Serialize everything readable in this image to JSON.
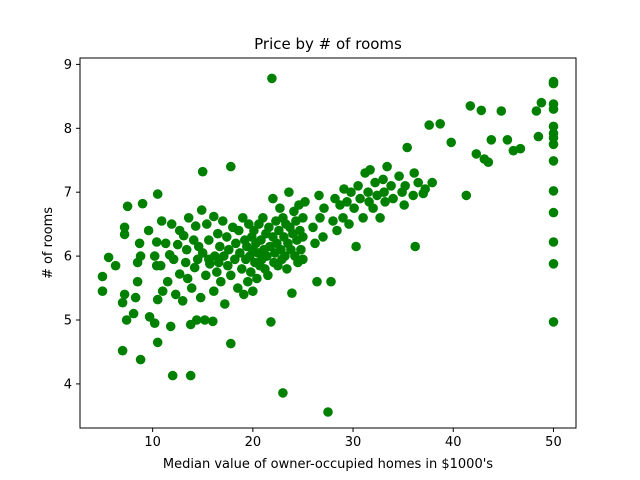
{
  "chart_data": {
    "type": "scatter",
    "title": "Price by # of rooms",
    "xlabel": "Median value of owner-occupied homes in $1000's",
    "ylabel": "# of rooms",
    "xlim": [
      2.75,
      52.25
    ],
    "ylim": [
      3.31,
      9.1
    ],
    "xticks": [
      10,
      20,
      30,
      40,
      50
    ],
    "yticks": [
      4,
      5,
      6,
      7,
      8,
      9
    ],
    "grid": false,
    "legend": "none",
    "marker_color": "#008000",
    "series": [
      {
        "points": [
          [
            5.0,
            5.45
          ],
          [
            5.0,
            5.68
          ],
          [
            5.6,
            5.98
          ],
          [
            6.3,
            5.85
          ],
          [
            7.0,
            4.52
          ],
          [
            7.0,
            5.27
          ],
          [
            7.2,
            5.4
          ],
          [
            7.2,
            6.34
          ],
          [
            7.2,
            6.45
          ],
          [
            7.4,
            5.0
          ],
          [
            7.5,
            6.78
          ],
          [
            8.1,
            5.1
          ],
          [
            8.3,
            5.35
          ],
          [
            8.5,
            5.6
          ],
          [
            8.5,
            5.9
          ],
          [
            8.7,
            6.2
          ],
          [
            8.8,
            4.38
          ],
          [
            8.8,
            6.0
          ],
          [
            9.0,
            6.82
          ],
          [
            9.6,
            6.4
          ],
          [
            9.7,
            5.05
          ],
          [
            10.2,
            6.0
          ],
          [
            10.2,
            4.95
          ],
          [
            10.4,
            5.85
          ],
          [
            10.4,
            6.22
          ],
          [
            10.5,
            4.65
          ],
          [
            10.5,
            5.32
          ],
          [
            10.5,
            6.97
          ],
          [
            10.8,
            5.85
          ],
          [
            10.9,
            6.55
          ],
          [
            11.0,
            5.45
          ],
          [
            11.3,
            6.2
          ],
          [
            11.5,
            5.6
          ],
          [
            11.7,
            6.02
          ],
          [
            11.8,
            4.9
          ],
          [
            11.9,
            6.5
          ],
          [
            12.0,
            4.13
          ],
          [
            12.1,
            5.95
          ],
          [
            12.3,
            5.4
          ],
          [
            12.5,
            6.18
          ],
          [
            12.7,
            6.4
          ],
          [
            12.7,
            5.72
          ],
          [
            13.0,
            5.3
          ],
          [
            13.1,
            6.32
          ],
          [
            13.3,
            5.9
          ],
          [
            13.4,
            6.1
          ],
          [
            13.5,
            5.65
          ],
          [
            13.6,
            6.6
          ],
          [
            13.8,
            4.13
          ],
          [
            13.8,
            4.93
          ],
          [
            13.9,
            5.5
          ],
          [
            14.1,
            6.25
          ],
          [
            14.2,
            5.82
          ],
          [
            14.3,
            6.47
          ],
          [
            14.4,
            5.0
          ],
          [
            14.5,
            5.95
          ],
          [
            14.6,
            6.15
          ],
          [
            14.8,
            5.35
          ],
          [
            14.9,
            6.72
          ],
          [
            15.0,
            7.32
          ],
          [
            15.0,
            6.05
          ],
          [
            15.2,
            5.0
          ],
          [
            15.3,
            5.7
          ],
          [
            15.4,
            6.5
          ],
          [
            15.6,
            5.95
          ],
          [
            15.6,
            6.25
          ],
          [
            15.7,
            5.88
          ],
          [
            16.0,
            4.98
          ],
          [
            16.1,
            5.45
          ],
          [
            16.1,
            6.62
          ],
          [
            16.2,
            6.0
          ],
          [
            16.4,
            5.75
          ],
          [
            16.5,
            6.35
          ],
          [
            16.6,
            5.9
          ],
          [
            16.7,
            6.15
          ],
          [
            16.8,
            5.6
          ],
          [
            17.0,
            6.55
          ],
          [
            17.1,
            6.0
          ],
          [
            17.2,
            5.25
          ],
          [
            17.4,
            6.3
          ],
          [
            17.5,
            5.85
          ],
          [
            17.6,
            6.1
          ],
          [
            17.8,
            7.4
          ],
          [
            17.8,
            5.7
          ],
          [
            17.8,
            4.63
          ],
          [
            18.0,
            6.45
          ],
          [
            18.2,
            5.95
          ],
          [
            18.3,
            6.2
          ],
          [
            18.5,
            5.5
          ],
          [
            18.6,
            6.4
          ],
          [
            18.7,
            6.05
          ],
          [
            18.9,
            5.8
          ],
          [
            19.0,
            6.6
          ],
          [
            19.1,
            5.4
          ],
          [
            19.2,
            6.25
          ],
          [
            19.3,
            5.95
          ],
          [
            19.4,
            6.15
          ],
          [
            19.5,
            5.6
          ],
          [
            19.6,
            6.5
          ],
          [
            19.7,
            6.0
          ],
          [
            19.8,
            5.75
          ],
          [
            19.9,
            6.3
          ],
          [
            20.0,
            5.45
          ],
          [
            20.0,
            6.1
          ],
          [
            20.1,
            6.4
          ],
          [
            20.2,
            5.9
          ],
          [
            20.3,
            6.2
          ],
          [
            20.4,
            5.65
          ],
          [
            20.5,
            6.05
          ],
          [
            20.6,
            6.5
          ],
          [
            20.7,
            5.85
          ],
          [
            20.8,
            6.25
          ],
          [
            20.9,
            5.95
          ],
          [
            21.0,
            6.6
          ],
          [
            21.1,
            6.1
          ],
          [
            21.2,
            5.8
          ],
          [
            21.3,
            6.35
          ],
          [
            21.4,
            6.0
          ],
          [
            21.5,
            5.7
          ],
          [
            21.6,
            6.45
          ],
          [
            21.7,
            6.15
          ],
          [
            21.8,
            4.97
          ],
          [
            21.9,
            8.78
          ],
          [
            22.0,
            6.9
          ],
          [
            22.0,
            6.3
          ],
          [
            22.1,
            5.9
          ],
          [
            22.2,
            6.05
          ],
          [
            22.3,
            6.55
          ],
          [
            22.4,
            6.2
          ],
          [
            22.5,
            5.85
          ],
          [
            22.6,
            6.4
          ],
          [
            22.7,
            6.75
          ],
          [
            22.8,
            6.1
          ],
          [
            22.9,
            5.95
          ],
          [
            23.0,
            6.6
          ],
          [
            23.0,
            3.86
          ],
          [
            23.1,
            6.3
          ],
          [
            23.2,
            6.0
          ],
          [
            23.3,
            6.5
          ],
          [
            23.4,
            5.8
          ],
          [
            23.5,
            6.2
          ],
          [
            23.6,
            7.0
          ],
          [
            23.7,
            6.45
          ],
          [
            23.8,
            6.1
          ],
          [
            23.9,
            5.42
          ],
          [
            24.0,
            6.35
          ],
          [
            24.1,
            6.7
          ],
          [
            24.2,
            6.0
          ],
          [
            24.3,
            6.55
          ],
          [
            24.4,
            6.25
          ],
          [
            24.5,
            5.9
          ],
          [
            24.6,
            6.8
          ],
          [
            24.7,
            6.4
          ],
          [
            24.8,
            6.1
          ],
          [
            25.0,
            6.6
          ],
          [
            25.0,
            6.3
          ],
          [
            25.0,
            5.95
          ],
          [
            25.2,
            6.85
          ],
          [
            26.0,
            6.45
          ],
          [
            26.2,
            6.2
          ],
          [
            26.4,
            5.6
          ],
          [
            26.6,
            6.95
          ],
          [
            26.7,
            6.6
          ],
          [
            27.0,
            6.3
          ],
          [
            27.1,
            6.75
          ],
          [
            27.5,
            3.56
          ],
          [
            27.8,
            5.6
          ],
          [
            28.0,
            6.55
          ],
          [
            28.2,
            6.9
          ],
          [
            28.4,
            6.4
          ],
          [
            28.7,
            6.8
          ],
          [
            29.0,
            6.6
          ],
          [
            29.1,
            7.05
          ],
          [
            29.4,
            6.85
          ],
          [
            29.6,
            6.5
          ],
          [
            29.8,
            7.0
          ],
          [
            30.1,
            6.75
          ],
          [
            30.3,
            6.15
          ],
          [
            30.5,
            7.1
          ],
          [
            30.7,
            6.9
          ],
          [
            31.0,
            6.6
          ],
          [
            31.2,
            7.3
          ],
          [
            31.5,
            7.0
          ],
          [
            31.6,
            6.85
          ],
          [
            31.7,
            7.35
          ],
          [
            32.0,
            6.75
          ],
          [
            32.2,
            7.15
          ],
          [
            32.4,
            6.95
          ],
          [
            32.7,
            6.6
          ],
          [
            33.0,
            7.2
          ],
          [
            33.1,
            7.0
          ],
          [
            33.2,
            6.85
          ],
          [
            33.4,
            7.4
          ],
          [
            33.8,
            7.1
          ],
          [
            34.0,
            6.9
          ],
          [
            34.6,
            7.25
          ],
          [
            34.9,
            7.0
          ],
          [
            35.1,
            6.8
          ],
          [
            35.2,
            7.1
          ],
          [
            35.4,
            7.7
          ],
          [
            36.0,
            6.95
          ],
          [
            36.1,
            7.3
          ],
          [
            36.2,
            6.15
          ],
          [
            36.5,
            7.15
          ],
          [
            37.0,
            6.98
          ],
          [
            37.2,
            7.05
          ],
          [
            37.6,
            8.05
          ],
          [
            37.9,
            7.15
          ],
          [
            38.7,
            8.07
          ],
          [
            39.8,
            7.78
          ],
          [
            41.3,
            6.95
          ],
          [
            41.7,
            8.35
          ],
          [
            42.3,
            7.6
          ],
          [
            42.8,
            8.28
          ],
          [
            43.1,
            7.52
          ],
          [
            43.5,
            7.47
          ],
          [
            43.8,
            7.82
          ],
          [
            44.8,
            8.27
          ],
          [
            45.4,
            7.82
          ],
          [
            46.0,
            7.65
          ],
          [
            46.7,
            7.68
          ],
          [
            48.3,
            8.27
          ],
          [
            48.5,
            7.87
          ],
          [
            48.8,
            8.4
          ],
          [
            50.0,
            8.73
          ],
          [
            50.0,
            8.7
          ],
          [
            50.0,
            8.38
          ],
          [
            50.0,
            8.3
          ],
          [
            50.0,
            8.03
          ],
          [
            50.0,
            7.92
          ],
          [
            50.0,
            7.85
          ],
          [
            50.0,
            7.75
          ],
          [
            50.0,
            7.49
          ],
          [
            50.0,
            7.02
          ],
          [
            50.0,
            6.68
          ],
          [
            50.0,
            6.22
          ],
          [
            50.0,
            5.88
          ],
          [
            50.0,
            4.97
          ]
        ]
      }
    ]
  }
}
